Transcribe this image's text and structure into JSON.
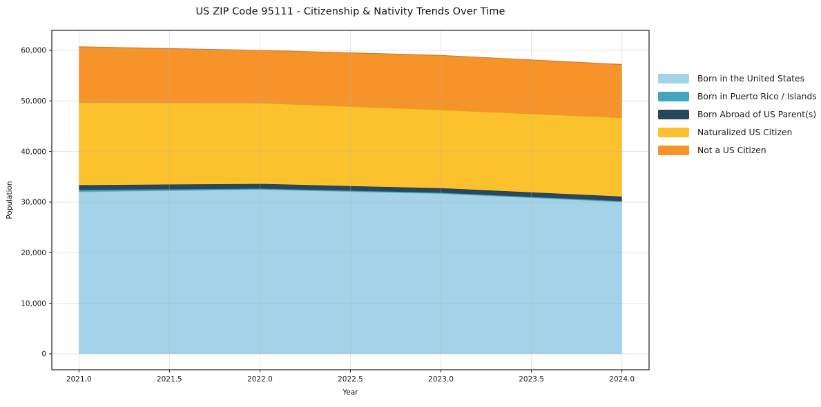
{
  "chart_data": {
    "type": "area",
    "stacked": true,
    "title": "US ZIP Code 95111 - Citizenship & Nativity Trends Over Time",
    "xlabel": "Year",
    "ylabel": "Population",
    "x": [
      2021,
      2022,
      2023,
      2024
    ],
    "series": [
      {
        "name": "Born in the United States",
        "color": "#a3d3e8",
        "values": [
          32050,
          32500,
          31700,
          30050
        ]
      },
      {
        "name": "Born in Puerto Rico / Islands",
        "color": "#44a5c2",
        "values": [
          350,
          170,
          160,
          150
        ]
      },
      {
        "name": "Born Abroad of US Parent(s)",
        "color": "#26475c",
        "values": [
          950,
          930,
          890,
          900
        ]
      },
      {
        "name": "Naturalized US Citizen",
        "color": "#fcc22d",
        "values": [
          16350,
          16000,
          15500,
          15600
        ]
      },
      {
        "name": "Not a US Citizen",
        "color": "#f79429",
        "values": [
          11000,
          10400,
          10750,
          10500
        ]
      }
    ],
    "totals": [
      60700,
      60000,
      59000,
      57200
    ],
    "xlim": [
      2020.85,
      2024.15
    ],
    "ylim": [
      -3140,
      63950
    ],
    "xticks": [
      2021.0,
      2021.5,
      2022.0,
      2022.5,
      2023.0,
      2023.5,
      2024.0
    ],
    "xtick_labels": [
      "2021.0",
      "2021.5",
      "2022.0",
      "2022.5",
      "2023.0",
      "2023.5",
      "2024.0"
    ],
    "yticks": [
      0,
      10000,
      20000,
      30000,
      40000,
      50000,
      60000
    ],
    "ytick_labels": [
      "0",
      "10,000",
      "20,000",
      "30,000",
      "40,000",
      "50,000",
      "60,000"
    ],
    "grid": true,
    "grid_color": "#b3b3b3",
    "axis_color": "#1a1a1a",
    "legend_position": "right-outside"
  }
}
